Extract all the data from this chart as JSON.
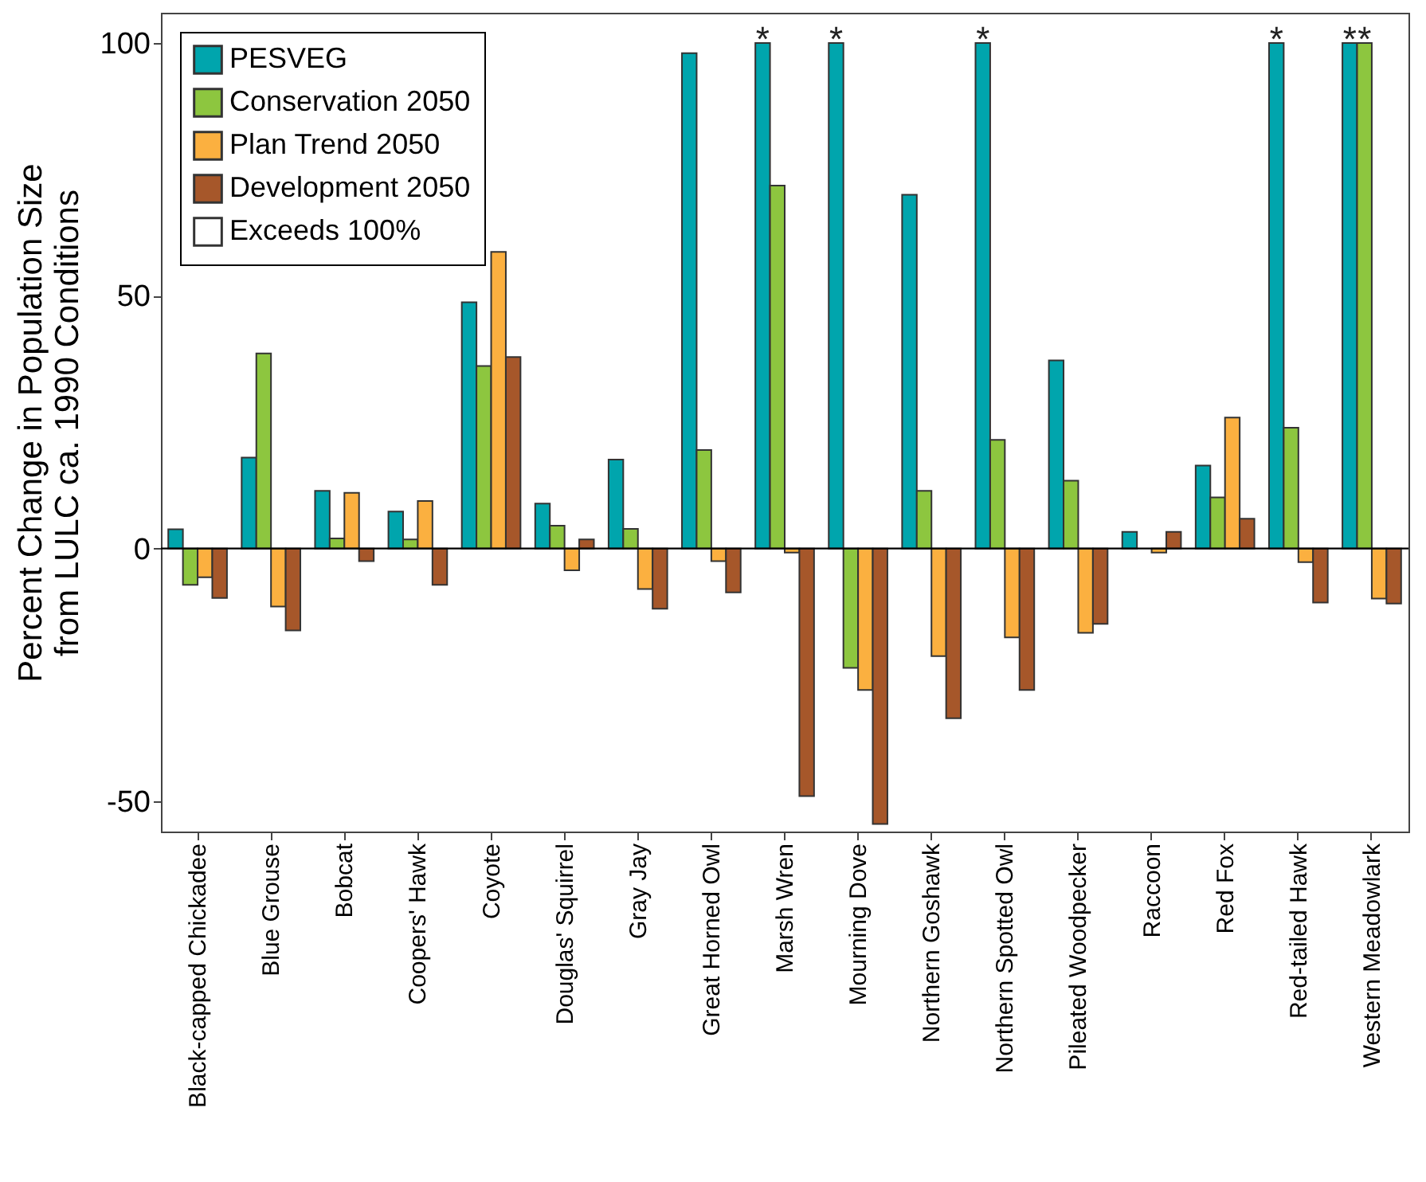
{
  "chart_data": {
    "type": "bar",
    "ylabel": "Percent Change in Population Size\nfrom LULC ca. 1990 Conditions",
    "categories": [
      "Black-capped Chickadee",
      "Blue Grouse",
      "Bobcat",
      "Coopers' Hawk",
      "Coyote",
      "Douglas' Squirrel",
      "Gray Jay",
      "Great Horned Owl",
      "Marsh Wren",
      "Mourning Dove",
      "Northern Goshawk",
      "Northern Spotted Owl",
      "Pileated Woodpecker",
      "Raccoon",
      "Red Fox",
      "Red-tailed Hawk",
      "Western Meadowlark"
    ],
    "series": [
      {
        "name": "PESVEG",
        "color": "#00a5ad",
        "values": [
          3.8,
          18,
          11.4,
          7.3,
          48.7,
          8.9,
          17.6,
          98,
          100,
          100,
          70,
          100,
          37.2,
          3.3,
          16.4,
          100,
          100
        ],
        "value_labels": [
          null,
          null,
          null,
          null,
          null,
          null,
          null,
          null,
          "*",
          "*",
          null,
          "*",
          null,
          null,
          null,
          "*",
          "*"
        ]
      },
      {
        "name": "Conservation 2050",
        "color": "#8dc63f",
        "values": [
          -7.2,
          38.6,
          2,
          1.8,
          36.1,
          4.5,
          3.9,
          19.5,
          71.8,
          -23.6,
          11.4,
          21.5,
          13.4,
          null,
          10.1,
          23.9,
          100
        ],
        "value_labels": [
          null,
          null,
          null,
          null,
          null,
          null,
          null,
          null,
          null,
          null,
          null,
          null,
          null,
          null,
          null,
          null,
          "*"
        ]
      },
      {
        "name": "Plan Trend 2050",
        "color": "#fbb040",
        "values": [
          -5.7,
          -11.5,
          11,
          9.4,
          58.7,
          -4.3,
          -8,
          -2.5,
          -0.8,
          -28,
          -21.3,
          -17.6,
          -16.7,
          -0.8,
          25.9,
          -2.7,
          -9.9
        ]
      },
      {
        "name": "Development 2050",
        "color": "#a6572a",
        "values": [
          -9.8,
          -16.2,
          -2.5,
          -7.2,
          37.9,
          1.8,
          -11.9,
          -8.7,
          -49,
          -54.5,
          -33.6,
          -28,
          -14.9,
          3.3,
          5.9,
          -10.7,
          -10.9
        ]
      }
    ],
    "ylim": [
      -56,
      106
    ],
    "yticks": [
      -50,
      0,
      50,
      100
    ],
    "grid": false,
    "legend": "top left",
    "ref_lines": [
      {
        "axis": "y",
        "value": 0,
        "color": "#000000"
      }
    ],
    "annotations": [
      "Exceeds 100%"
    ]
  }
}
